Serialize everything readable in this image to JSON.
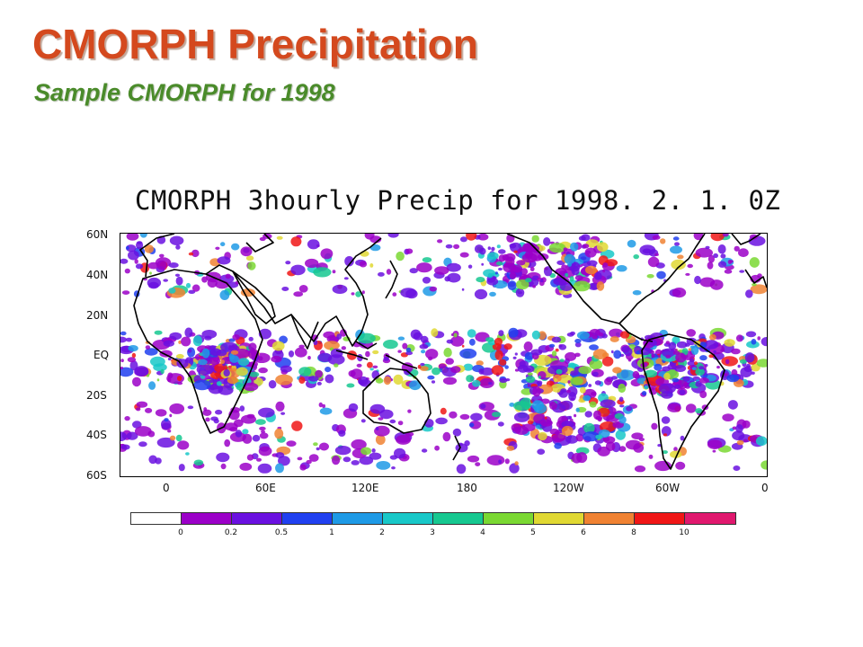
{
  "header": {
    "title": "CMORPH Precipitation",
    "subtitle": "Sample CMORPH for 1998"
  },
  "map": {
    "title": "CMORPH 3hourly Precip for 1998. 2. 1. 0Z",
    "lat_labels": [
      "60N",
      "40N",
      "20N",
      "EQ",
      "20S",
      "40S",
      "60S"
    ],
    "lon_labels": [
      "0",
      "60E",
      "120E",
      "180",
      "120W",
      "60W",
      "0"
    ],
    "lat_range": [
      -60,
      60
    ],
    "lon_range": [
      0,
      360
    ]
  },
  "colorbar": {
    "labels": [
      "0",
      "0.2",
      "0.5",
      "1",
      "2",
      "3",
      "4",
      "5",
      "6",
      "8",
      "10"
    ],
    "colors": [
      "#ffffff",
      "#9b00c8",
      "#6a10e0",
      "#2040f0",
      "#1e9ae6",
      "#18c8c8",
      "#16c890",
      "#7ad832",
      "#e0d832",
      "#f08232",
      "#f01616",
      "#e0186e"
    ]
  }
}
